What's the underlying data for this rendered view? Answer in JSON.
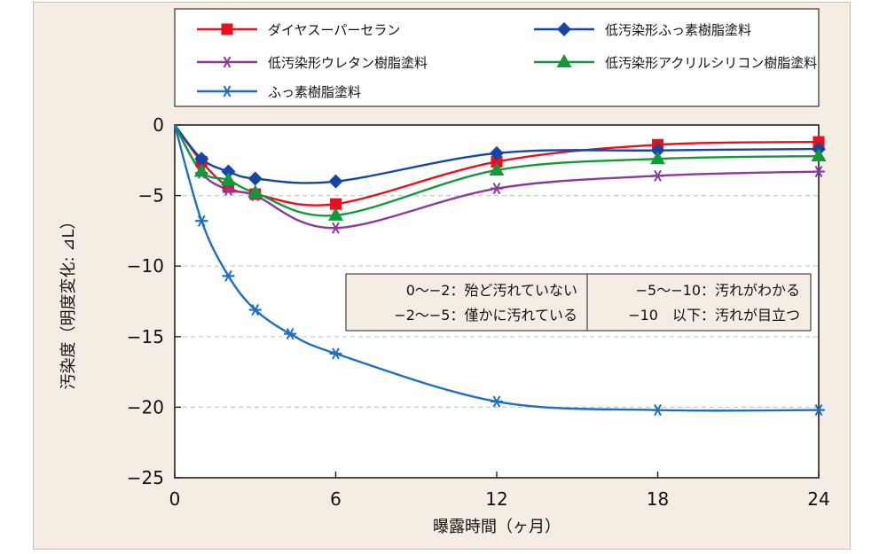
{
  "chart_data": {
    "type": "line",
    "xlabel": "曝露時間（ヶ月）",
    "ylabel": "汚染度（明度変化: ⊿L）",
    "x_ticks": [
      "0",
      "6",
      "12",
      "18",
      "24"
    ],
    "y_ticks": [
      "0",
      "−5",
      "−10",
      "−15",
      "−20",
      "−25"
    ],
    "xlim": [
      0,
      24
    ],
    "ylim": [
      -25,
      0
    ],
    "grid": "dashed horizontal at -5, -10, -15, -20",
    "legend_placement": "top",
    "series": [
      {
        "name": "ダイヤスーパーセラン",
        "color": "#e8101e",
        "marker": "square",
        "points": [
          [
            1,
            -2.6
          ],
          [
            2,
            -4.4
          ],
          [
            3,
            -4.9
          ],
          [
            6,
            -5.6
          ],
          [
            12,
            -2.6
          ],
          [
            18,
            -1.4
          ],
          [
            24,
            -1.2
          ]
        ]
      },
      {
        "name": "低汚染形ふっ素樹脂塗料",
        "color": "#1545a8",
        "marker": "diamond",
        "points": [
          [
            1,
            -2.4
          ],
          [
            2,
            -3.3
          ],
          [
            3,
            -3.8
          ],
          [
            6,
            -4.0
          ],
          [
            12,
            -2.0
          ],
          [
            18,
            -1.8
          ],
          [
            24,
            -1.7
          ]
        ]
      },
      {
        "name": "低汚染形ウレタン樹脂塗料",
        "color": "#8c3aa0",
        "marker": "asterisk",
        "points": [
          [
            1,
            -3.4
          ],
          [
            2,
            -4.6
          ],
          [
            3,
            -5.0
          ],
          [
            6,
            -7.3
          ],
          [
            12,
            -4.5
          ],
          [
            18,
            -3.6
          ],
          [
            24,
            -3.3
          ]
        ]
      },
      {
        "name": "低汚染形アクリルシリコン樹脂塗料",
        "color": "#129a3a",
        "marker": "triangle",
        "points": [
          [
            1,
            -3.3
          ],
          [
            2,
            -3.9
          ],
          [
            3,
            -4.8
          ],
          [
            6,
            -6.4
          ],
          [
            12,
            -3.2
          ],
          [
            18,
            -2.4
          ],
          [
            24,
            -2.2
          ]
        ]
      },
      {
        "name": "ふっ素樹脂塗料",
        "color": "#1f6fc0",
        "marker": "asterisk",
        "points": [
          [
            1,
            -6.8
          ],
          [
            2,
            -10.7
          ],
          [
            3,
            -13.1
          ],
          [
            4.3,
            -14.8
          ],
          [
            6,
            -16.2
          ],
          [
            12,
            -19.6
          ],
          [
            18,
            -20.2
          ],
          [
            24,
            -20.2
          ]
        ]
      }
    ],
    "annotation_table": [
      [
        "0〜−2：殆ど汚れていない",
        "−5〜−10：汚れがわかる"
      ],
      [
        "−2〜−5：僅かに汚れている",
        "−10　以下：汚れが目立つ"
      ]
    ]
  }
}
